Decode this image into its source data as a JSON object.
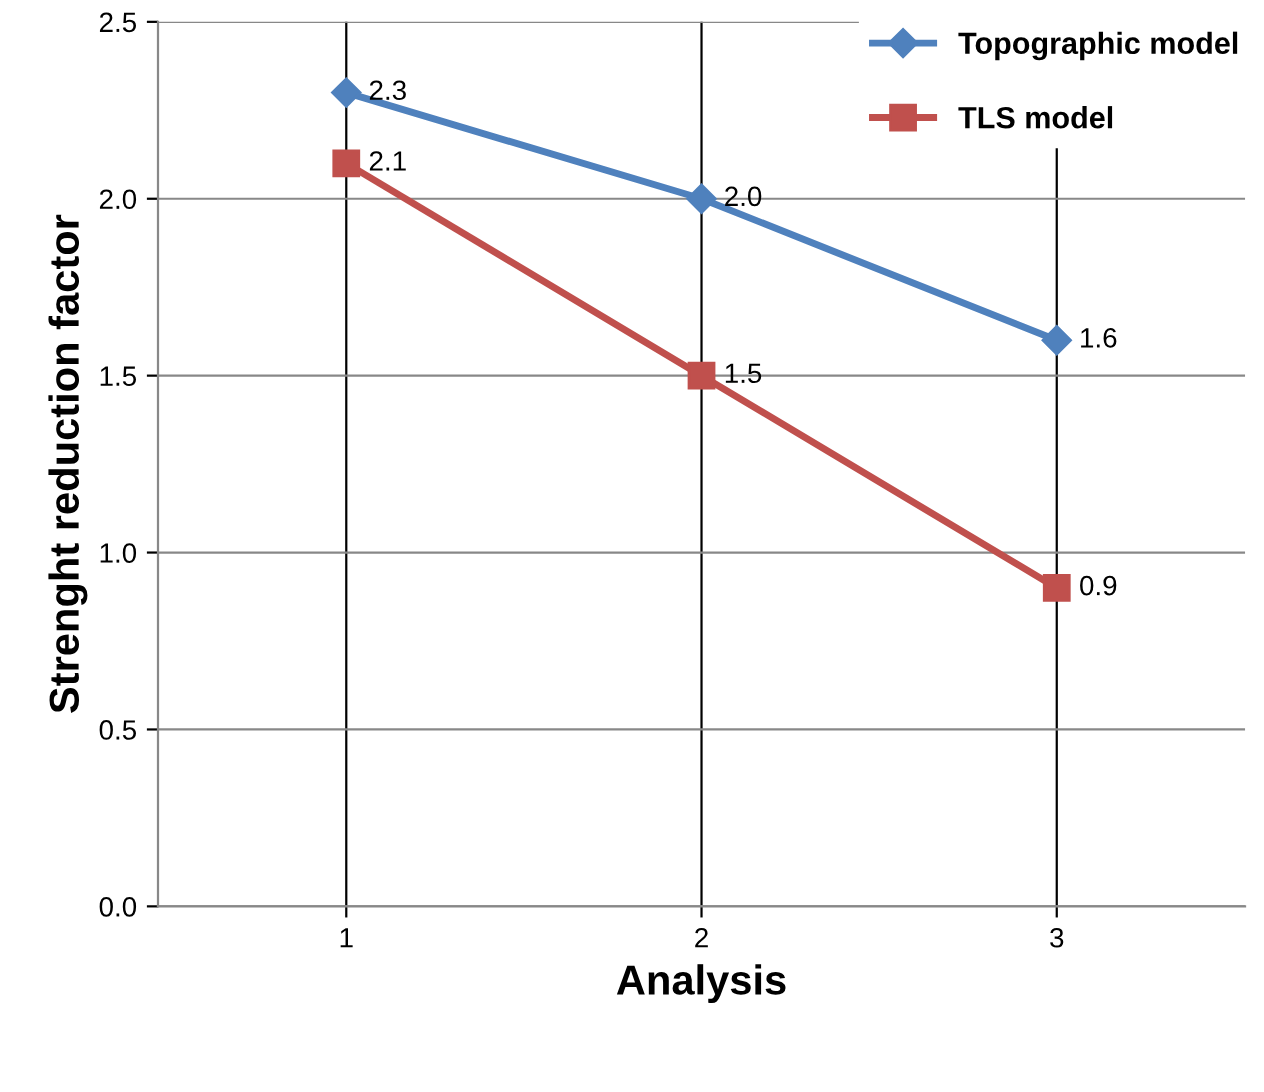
{
  "chart_data": {
    "type": "line",
    "xlabel": "Analysis",
    "ylabel": "Strenght reduction factor",
    "categories": [
      "1",
      "2",
      "3"
    ],
    "series": [
      {
        "name": "Topographic model",
        "color": "#4f81bd",
        "marker": "diamond",
        "values": [
          2.3,
          2.0,
          1.6
        ],
        "value_labels": [
          "2.3",
          "2.0",
          "1.6"
        ]
      },
      {
        "name": "TLS model",
        "color": "#c0504d",
        "marker": "square",
        "values": [
          2.1,
          1.5,
          0.9
        ],
        "value_labels": [
          "2.1",
          "1.5",
          "0.9"
        ]
      }
    ],
    "ylim": [
      0,
      2.5
    ],
    "yticks": [
      {
        "value": 0,
        "label": "0.0"
      },
      {
        "value": 0.5,
        "label": "0.5"
      },
      {
        "value": 1,
        "label": "1.0"
      },
      {
        "value": 1.5,
        "label": "1.5"
      },
      {
        "value": 2,
        "label": "2.0"
      },
      {
        "value": 2.5,
        "label": "2.5"
      }
    ],
    "grid": true,
    "legend": "top right"
  }
}
